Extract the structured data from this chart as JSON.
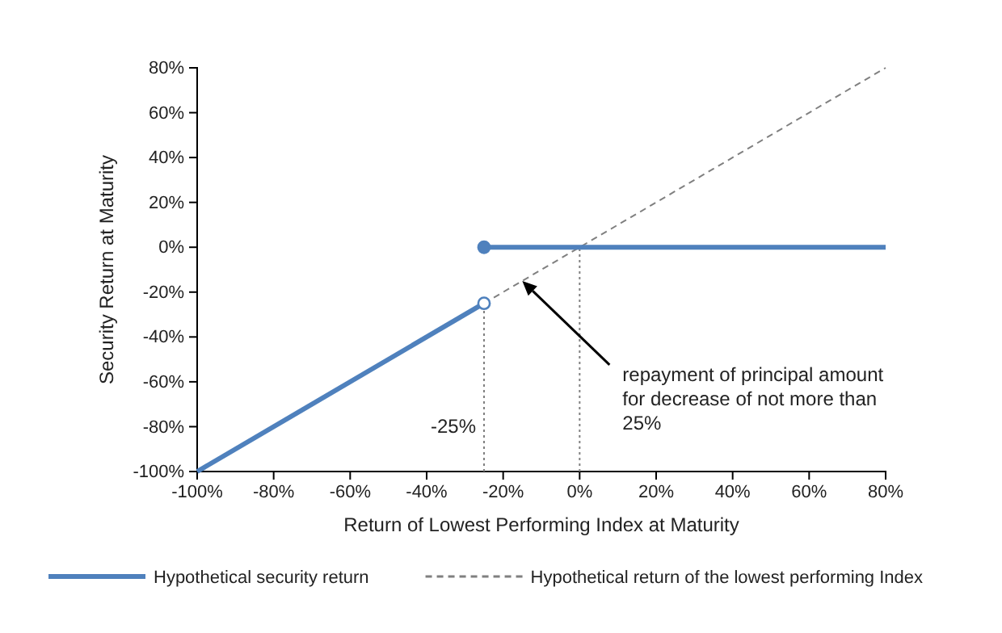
{
  "chart_data": {
    "type": "line",
    "xlabel": "Return  of Lowest  Performing Index at Maturity",
    "ylabel": "Security Return at Maturity",
    "xlim": [
      -100,
      80
    ],
    "xticks": [
      {
        "value": -100,
        "label": "-100%"
      },
      {
        "value": -80,
        "label": "-80%"
      },
      {
        "value": -60,
        "label": "-60%"
      },
      {
        "value": -40,
        "label": "-40%"
      },
      {
        "value": -20,
        "label": "-20%"
      },
      {
        "value": 0,
        "label": "0%"
      },
      {
        "value": 20,
        "label": "20%"
      },
      {
        "value": 40,
        "label": "40%"
      },
      {
        "value": 60,
        "label": "60%"
      },
      {
        "value": 80,
        "label": "80%"
      }
    ],
    "ylim": [
      -100,
      80
    ],
    "yticks": [
      {
        "value": -100,
        "label": "-100%"
      },
      {
        "value": -80,
        "label": "-80%"
      },
      {
        "value": -60,
        "label": "-60%"
      },
      {
        "value": -40,
        "label": "-40%"
      },
      {
        "value": -20,
        "label": "-20%"
      },
      {
        "value": 0,
        "label": "0%"
      },
      {
        "value": 20,
        "label": "20%"
      },
      {
        "value": 40,
        "label": "40%"
      },
      {
        "value": 60,
        "label": "60%"
      },
      {
        "value": 80,
        "label": "80%"
      }
    ],
    "grid": false,
    "legend": "bottom",
    "series": [
      {
        "name": "Hypothetical security return",
        "color": "#4f81bd",
        "line_style": "solid",
        "x": [
          -100,
          -25
        ],
        "values": [
          -100,
          -25
        ]
      },
      {
        "color": "#4f81bd",
        "line_style": "solid",
        "x": [
          -25,
          80
        ],
        "values": [
          0,
          0
        ]
      },
      {
        "name": "Hypothetical return of the lowest performing Index",
        "color": "#808080",
        "line_style": "dashed",
        "x": [
          -25,
          80
        ],
        "values": [
          -25,
          80
        ]
      },
      {
        "type": "scatter",
        "color": "#4f81bd",
        "colors": [
          "#4f81bd",
          "#ffffff"
        ],
        "marker": "circle",
        "x": [
          -25,
          -25
        ],
        "values": [
          0,
          -25
        ]
      }
    ],
    "ref_lines": [
      {
        "axis": "x",
        "value": -25,
        "label": "-25%",
        "line_style": "dotted",
        "color": "#808080"
      },
      {
        "axis": "x",
        "value": 0,
        "label": null,
        "line_style": "dotted",
        "color": "#808080"
      }
    ],
    "annotations": [
      {
        "text": "repayment of principal amount for decrease of not more than 25%",
        "x": -15,
        "y": -15
      }
    ]
  }
}
